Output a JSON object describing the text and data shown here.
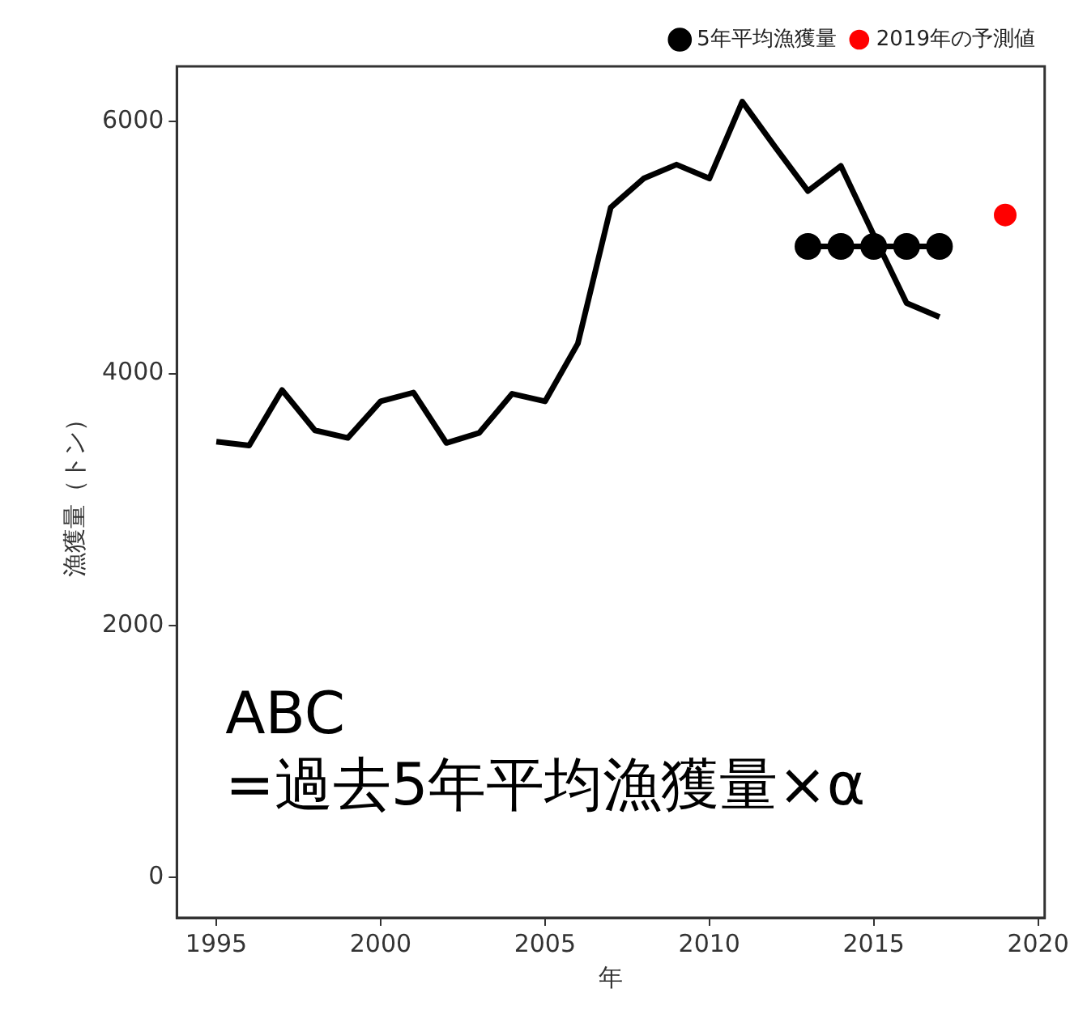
{
  "chart_data": {
    "type": "line",
    "xlabel": "年",
    "ylabel": "漁獲量（トン）",
    "xlim": [
      1993.8,
      2020.2
    ],
    "xticks": [
      1995,
      2000,
      2005,
      2010,
      2015,
      {
        "value": 2020,
        "label": "2020"
      }
    ],
    "ylim": [
      -320,
      6440
    ],
    "yticks": [
      0,
      2000,
      4000,
      6000
    ],
    "grid": false,
    "legend": "top right",
    "series": [
      {
        "color": "#000000",
        "marker": "none",
        "x": [
          1995,
          1996,
          1997,
          1998,
          1999,
          2000,
          2001,
          2002,
          2003,
          2004,
          2005,
          2006,
          2007,
          2008,
          2009,
          2010,
          2011,
          2012,
          2013,
          2014,
          2015,
          2016,
          2017
        ],
        "values": [
          3460,
          3430,
          3870,
          3550,
          3490,
          3780,
          3850,
          3450,
          3530,
          3840,
          3780,
          4240,
          5320,
          5550,
          5660,
          5550,
          6160,
          5800,
          5450,
          5650,
          5100,
          4560,
          4450
        ]
      },
      {
        "type": "line",
        "name": "5年平均漁獲量",
        "color": "#000000",
        "marker": "circle",
        "x": [
          2013,
          2014,
          2015,
          2016,
          2017
        ],
        "values": [
          5010,
          5010,
          5010,
          5010,
          5010
        ]
      },
      {
        "type": "scatter",
        "name": "2019年の予測値",
        "color": "#ff0000",
        "marker": "circle",
        "x": [
          2019
        ],
        "values": [
          5260
        ]
      }
    ],
    "annotations": [
      "ABC\n=過去5年平均漁獲量×α"
    ]
  }
}
